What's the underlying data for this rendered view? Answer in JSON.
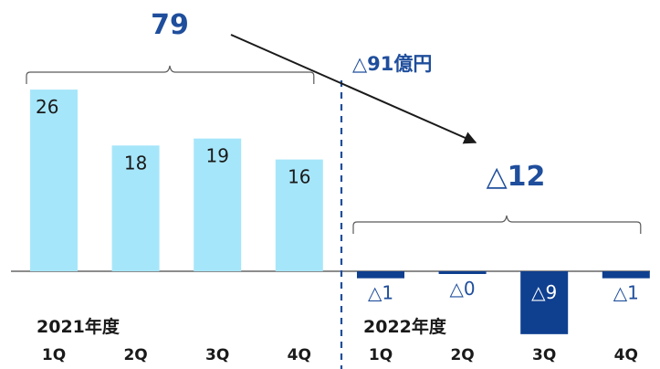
{
  "chart_data": {
    "type": "bar",
    "colors": {
      "fy2021": "#a6e6fa",
      "fy2022": "#0f3f8f",
      "text": "#1f4e9c",
      "label_dark": "#1a1a1a"
    },
    "groups": [
      {
        "name": "2021年度",
        "total_label": "79",
        "bars": [
          {
            "category": "1Q",
            "value": 26,
            "label": "26"
          },
          {
            "category": "2Q",
            "value": 18,
            "label": "18"
          },
          {
            "category": "3Q",
            "value": 19,
            "label": "19"
          },
          {
            "category": "4Q",
            "value": 16,
            "label": "16"
          }
        ]
      },
      {
        "name": "2022年度",
        "total_label": "△12",
        "bars": [
          {
            "category": "1Q",
            "value": -1,
            "label": "△1"
          },
          {
            "category": "2Q",
            "value": -0.3,
            "label": "△0"
          },
          {
            "category": "3Q",
            "value": -9,
            "label": "△9"
          },
          {
            "category": "4Q",
            "value": -1,
            "label": "△1"
          }
        ]
      }
    ],
    "change_label": "△91億円",
    "ylim": [
      -10,
      30
    ]
  }
}
